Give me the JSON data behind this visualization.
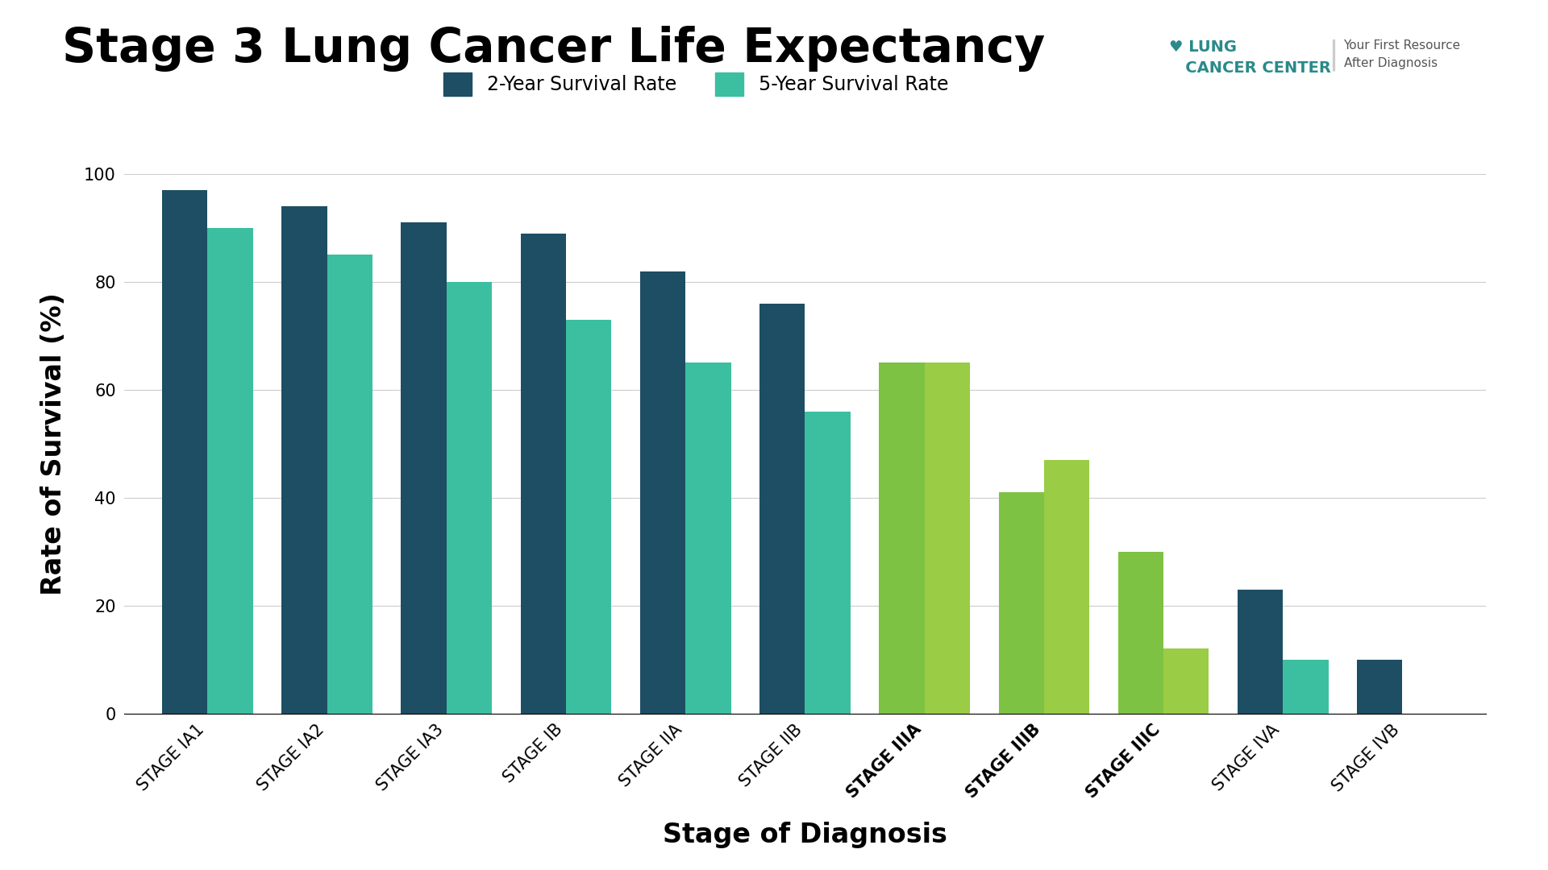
{
  "title": "Stage 3 Lung Cancer Life Expectancy",
  "xlabel": "Stage of Diagnosis",
  "ylabel": "Rate of Survival (%)",
  "categories": [
    "STAGE IA1",
    "STAGE IA2",
    "STAGE IA3",
    "STAGE IB",
    "STAGE IIA",
    "STAGE IIB",
    "STAGE IIIA",
    "STAGE IIIB",
    "STAGE IIIC",
    "STAGE IVA",
    "STAGE IVB"
  ],
  "bold_categories": [
    "STAGE IIIA",
    "STAGE IIIB",
    "STAGE IIIC"
  ],
  "two_year": [
    97,
    94,
    91,
    89,
    82,
    76,
    65,
    41,
    30,
    23,
    10
  ],
  "five_year": [
    90,
    85,
    80,
    73,
    65,
    56,
    65,
    47,
    12,
    10,
    -1
  ],
  "bar_color_2yr_early": "#1d4e63",
  "bar_color_5yr_early": "#3bbfa0",
  "bar_color_2yr_stage3": "#7dc242",
  "bar_color_5yr_stage3": "#9acc45",
  "bar_color_2yr_late": "#1d4e63",
  "bar_color_5yr_late": "#3bbfa0",
  "ylim": [
    0,
    100
  ],
  "yticks": [
    0,
    20,
    40,
    60,
    80,
    100
  ],
  "background_color": "#ffffff",
  "legend_2yr_label": "2-Year Survival Rate",
  "legend_5yr_label": "5-Year Survival Rate",
  "bar_width": 0.38,
  "title_fontsize": 42,
  "axis_label_fontsize": 24,
  "tick_fontsize": 15,
  "legend_fontsize": 17
}
